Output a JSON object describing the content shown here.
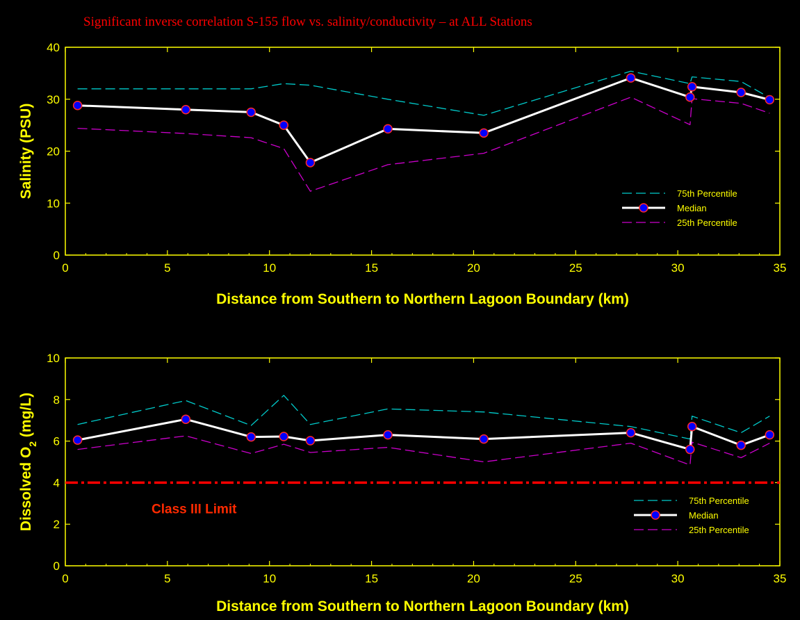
{
  "title": "Significant inverse correlation S-155 flow vs. salinity/conductivity – at ALL Stations",
  "colors": {
    "background": "#000000",
    "axis": "#ffff00",
    "p75": "#00cccc",
    "median": "#ffffff",
    "marker_fill": "#0000ff",
    "marker_edge": "#ff2a2a",
    "p25": "#cc00cc",
    "limit": "#ff0000"
  },
  "chart_data": [
    {
      "type": "line",
      "xlabel": "Distance from Southern to Northern Lagoon Boundary (km)",
      "ylabel": "Salinity (PSU)",
      "xlim": [
        0,
        35
      ],
      "ylim": [
        0,
        40
      ],
      "xticks": [
        "0",
        "5",
        "10",
        "15",
        "20",
        "25",
        "30",
        "35"
      ],
      "yticks": [
        "0",
        "10",
        "20",
        "30",
        "40"
      ],
      "legend_position": "lower-right",
      "series": [
        {
          "name": "75th Percentile",
          "style": "dashed",
          "x": [
            0.6,
            5.9,
            9.1,
            10.7,
            12.0,
            15.8,
            20.5,
            27.7,
            30.6,
            30.7,
            33.1,
            34.5
          ],
          "values": [
            32.0,
            32.0,
            32.0,
            33.0,
            32.7,
            30.0,
            26.9,
            35.4,
            33.0,
            34.3,
            33.4,
            30.3
          ]
        },
        {
          "name": "Median",
          "style": "solid-markers",
          "x": [
            0.6,
            5.9,
            9.1,
            10.7,
            12.0,
            15.8,
            20.5,
            27.7,
            30.6,
            30.7,
            33.1,
            34.5
          ],
          "values": [
            28.8,
            28.0,
            27.5,
            25.0,
            17.8,
            24.3,
            23.5,
            34.1,
            30.4,
            32.4,
            31.3,
            29.9
          ]
        },
        {
          "name": "25th Percentile",
          "style": "dashed",
          "x": [
            0.6,
            5.9,
            9.1,
            10.7,
            12.0,
            15.8,
            20.5,
            27.7,
            30.6,
            30.7,
            33.1,
            34.5
          ],
          "values": [
            24.4,
            23.4,
            22.6,
            20.5,
            12.3,
            17.4,
            19.6,
            30.4,
            25.1,
            30.1,
            29.2,
            27.3
          ]
        }
      ]
    },
    {
      "type": "line",
      "xlabel": "Distance from Southern to Northern Lagoon Boundary (km)",
      "ylabel_prefix": "Dissolved O",
      "ylabel_sub": "2",
      "ylabel_suffix": " (mg/L)",
      "xlim": [
        0,
        35
      ],
      "ylim": [
        0,
        10
      ],
      "xticks": [
        "0",
        "5",
        "10",
        "15",
        "20",
        "25",
        "30",
        "35"
      ],
      "yticks": [
        "0",
        "2",
        "4",
        "6",
        "8",
        "10"
      ],
      "legend_position": "lower-right",
      "reference_line": {
        "y": 4,
        "label": "Class III Limit"
      },
      "series": [
        {
          "name": "75th Percentile",
          "style": "dashed",
          "x": [
            0.6,
            5.9,
            9.1,
            10.7,
            12.0,
            15.8,
            20.5,
            27.7,
            30.6,
            30.7,
            33.1,
            34.5
          ],
          "values": [
            6.8,
            7.95,
            6.75,
            8.2,
            6.8,
            7.55,
            7.4,
            6.7,
            6.1,
            7.2,
            6.4,
            7.2
          ]
        },
        {
          "name": "Median",
          "style": "solid-markers",
          "x": [
            0.6,
            5.9,
            9.1,
            10.7,
            12.0,
            15.8,
            20.5,
            27.7,
            30.6,
            30.7,
            33.1,
            34.5
          ],
          "values": [
            6.05,
            7.05,
            6.2,
            6.22,
            6.02,
            6.3,
            6.1,
            6.4,
            5.6,
            6.7,
            5.8,
            6.3
          ]
        },
        {
          "name": "25th Percentile",
          "style": "dashed",
          "x": [
            0.6,
            5.9,
            9.1,
            10.7,
            12.0,
            15.8,
            20.5,
            27.7,
            30.6,
            30.7,
            33.1,
            34.5
          ],
          "values": [
            5.6,
            6.25,
            5.4,
            5.85,
            5.45,
            5.7,
            5.0,
            5.9,
            4.85,
            5.95,
            5.2,
            5.9
          ]
        }
      ]
    }
  ]
}
